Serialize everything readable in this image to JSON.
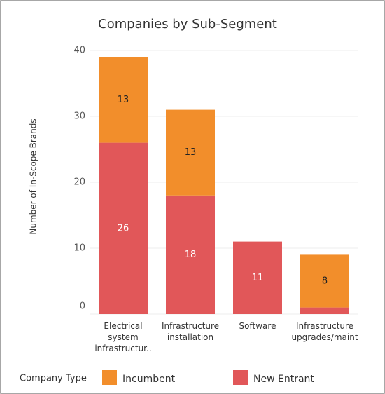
{
  "chart_data": {
    "type": "stacked_bar",
    "title": "Companies by Sub-Segment",
    "y_label": "Number of In-Scope Brands",
    "categories": [
      "Electrical system infrastructur..",
      "Infrastructure installation",
      "Software",
      "Infrastructure upgrades/maint"
    ],
    "series": [
      {
        "name": "Incumbent",
        "color": "#f28e2b",
        "values": [
          13,
          13,
          null,
          8
        ],
        "value_labels": [
          "13",
          "13",
          null,
          "8"
        ]
      },
      {
        "name": "New Entrant",
        "color": "#e15759",
        "values": [
          26,
          18,
          11,
          1
        ],
        "value_labels": [
          "26",
          "18",
          "11",
          null
        ]
      }
    ],
    "legend_title": "Company Type",
    "ylim": [
      0,
      40
    ],
    "yticks": [
      0,
      10,
      20,
      30,
      40
    ],
    "grid": true,
    "legend": "bottom"
  }
}
